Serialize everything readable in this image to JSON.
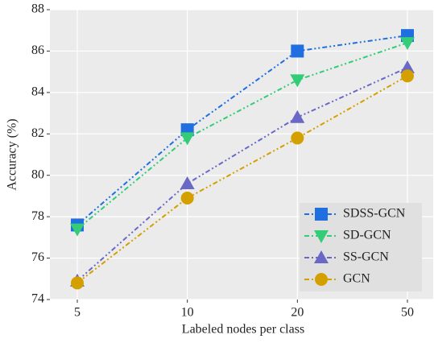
{
  "chart_data": {
    "type": "line",
    "x_label": "Labeled nodes per class",
    "y_label": "Accuracy (%)",
    "categories": [
      "5",
      "10",
      "20",
      "50"
    ],
    "ylim": [
      74,
      88
    ],
    "yticks": [
      74,
      76,
      78,
      80,
      82,
      84,
      86,
      88
    ],
    "grid": true,
    "legend": "bottom-right",
    "series": [
      {
        "name": "SDSS-GCN",
        "color": "#1f6fe0",
        "marker": "square",
        "values": [
          77.6,
          82.2,
          86.0,
          86.75
        ]
      },
      {
        "name": "SD-GCN",
        "color": "#33cc77",
        "marker": "triangle-down",
        "values": [
          77.4,
          81.8,
          84.6,
          86.4
        ]
      },
      {
        "name": "SS-GCN",
        "color": "#6a68c6",
        "marker": "triangle-up",
        "values": [
          74.9,
          79.6,
          82.8,
          85.2
        ]
      },
      {
        "name": "GCN",
        "color": "#d4a000",
        "marker": "circle",
        "values": [
          74.8,
          78.9,
          81.8,
          84.8
        ]
      }
    ]
  }
}
